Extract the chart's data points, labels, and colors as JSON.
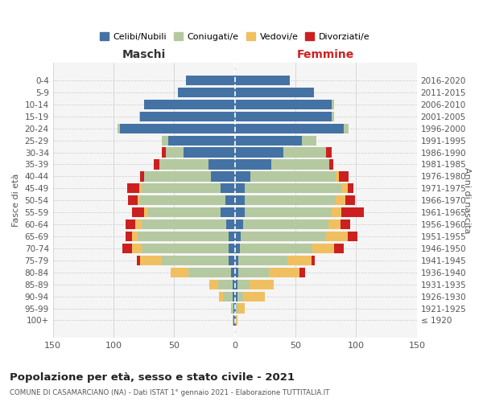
{
  "age_groups": [
    "100+",
    "95-99",
    "90-94",
    "85-89",
    "80-84",
    "75-79",
    "70-74",
    "65-69",
    "60-64",
    "55-59",
    "50-54",
    "45-49",
    "40-44",
    "35-39",
    "30-34",
    "25-29",
    "20-24",
    "15-19",
    "10-14",
    "5-9",
    "0-4"
  ],
  "birth_years": [
    "≤ 1920",
    "1921-1925",
    "1926-1930",
    "1931-1935",
    "1936-1940",
    "1941-1945",
    "1946-1950",
    "1951-1955",
    "1956-1960",
    "1961-1965",
    "1966-1970",
    "1971-1975",
    "1976-1980",
    "1981-1985",
    "1986-1990",
    "1991-1995",
    "1996-2000",
    "2001-2005",
    "2006-2010",
    "2011-2015",
    "2016-2020"
  ],
  "males": {
    "celibe": [
      1,
      1,
      2,
      2,
      3,
      5,
      5,
      5,
      7,
      12,
      8,
      12,
      20,
      22,
      42,
      55,
      95,
      78,
      75,
      47,
      40
    ],
    "coniugato": [
      1,
      2,
      8,
      12,
      35,
      55,
      72,
      75,
      70,
      60,
      70,
      65,
      55,
      40,
      15,
      5,
      2,
      1,
      0,
      0,
      0
    ],
    "vedovo": [
      0,
      0,
      3,
      7,
      15,
      18,
      8,
      5,
      5,
      3,
      2,
      2,
      0,
      0,
      0,
      0,
      0,
      0,
      0,
      0,
      0
    ],
    "divorziato": [
      0,
      0,
      0,
      0,
      0,
      3,
      8,
      5,
      8,
      10,
      8,
      10,
      3,
      5,
      3,
      0,
      0,
      0,
      0,
      0,
      0
    ]
  },
  "females": {
    "nubile": [
      1,
      1,
      2,
      2,
      3,
      3,
      4,
      5,
      7,
      8,
      8,
      8,
      13,
      30,
      40,
      55,
      90,
      80,
      80,
      65,
      45
    ],
    "coniugata": [
      0,
      2,
      5,
      10,
      25,
      40,
      60,
      70,
      70,
      72,
      75,
      80,
      70,
      48,
      35,
      12,
      4,
      2,
      2,
      0,
      0
    ],
    "vedova": [
      1,
      5,
      18,
      20,
      25,
      20,
      18,
      18,
      10,
      8,
      8,
      5,
      3,
      0,
      0,
      0,
      0,
      0,
      0,
      0,
      0
    ],
    "divorziata": [
      0,
      0,
      0,
      0,
      5,
      3,
      8,
      8,
      8,
      18,
      8,
      5,
      8,
      3,
      5,
      0,
      0,
      0,
      0,
      0,
      0
    ]
  },
  "colors": {
    "celibe_nubile": "#4472a4",
    "coniugato_a": "#b5c9a0",
    "vedovo_a": "#f0c060",
    "divorziato_a": "#cc2020"
  },
  "title": "Popolazione per età, sesso e stato civile - 2021",
  "subtitle": "COMUNE DI CASAMARCIANO (NA) - Dati ISTAT 1° gennaio 2021 - Elaborazione TUTTITALIA.IT",
  "xlabel_left": "Maschi",
  "xlabel_right": "Femmine",
  "ylabel": "Fasce di età",
  "ylabel_right": "Anni di nascita",
  "xlim": 150,
  "legend_labels": [
    "Celibi/Nubili",
    "Coniugati/e",
    "Vedovi/e",
    "Divorziati/e"
  ],
  "bg_color": "#f5f5f5",
  "grid_color": "#cccccc"
}
